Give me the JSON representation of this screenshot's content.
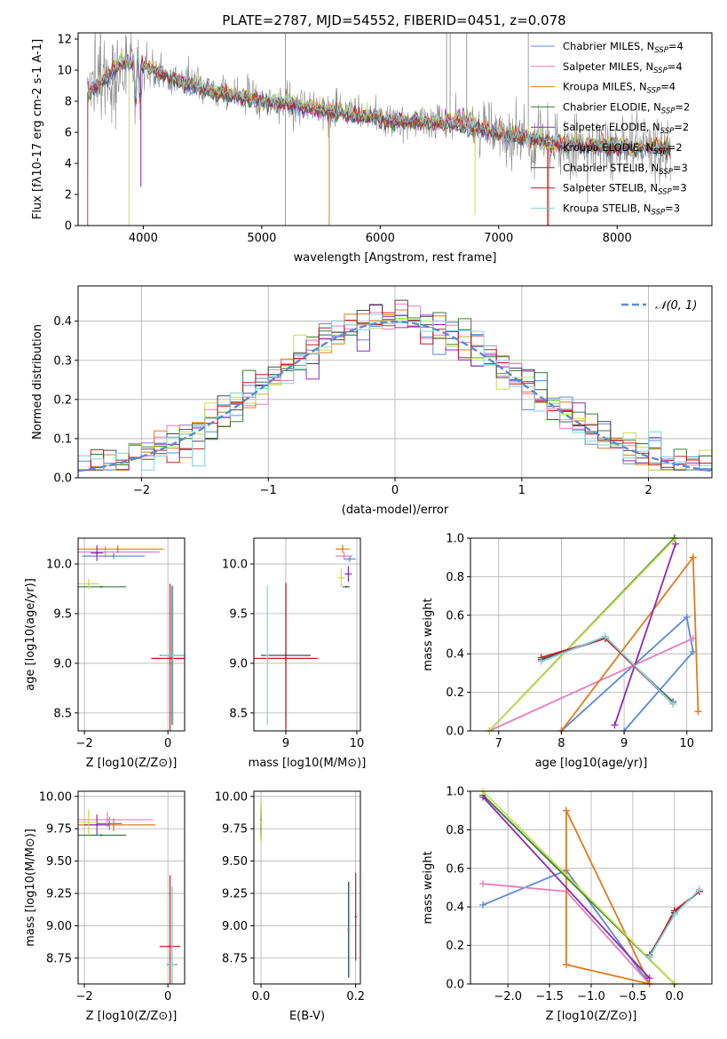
{
  "figure": {
    "title": "PLATE=2787, MJD=54552, FIBERID=0451, z=0.078"
  },
  "colors": {
    "chabrier_miles": "#5b8ad6",
    "salpeter_miles": "#e47ebd",
    "kroupa_miles": "#e07b1c",
    "chabrier_elodie": "#3a7a3a",
    "salpeter_elodie": "#9027b5",
    "kroupa_elodie": "#c4e04a",
    "chabrier_stelib": "#4a4a4a",
    "salpeter_stelib": "#c21f1f",
    "kroupa_stelib": "#7fd3dc",
    "data": "#888888",
    "normal": "#5b8ad6",
    "grid": "#b0b0b0"
  },
  "chart_data": [
    {
      "id": "spectrum",
      "type": "line",
      "xlabel": "wavelength [Angstrom, rest frame]",
      "ylabel": "Flux [f$_\\lambda$10$^{-17}$ erg cm$^{-2}$ s$^{-1}$ A$^{-1}$]",
      "xlim": [
        3450,
        8800
      ],
      "ylim": [
        0,
        12.4
      ],
      "xticks": [
        4000,
        5000,
        6000,
        7000,
        8000
      ],
      "yticks": [
        0,
        2,
        4,
        6,
        8,
        10,
        12
      ],
      "grid": false,
      "legend_position": "top-right",
      "legend": [
        {
          "key": "chabrier_miles",
          "main": "Chabrier MILES, N",
          "sub": "SSP",
          "tail": "=4"
        },
        {
          "key": "salpeter_miles",
          "main": "Salpeter MILES, N",
          "sub": "SSP",
          "tail": "=4"
        },
        {
          "key": "kroupa_miles",
          "main": "Kroupa MILES, N",
          "sub": "SSP",
          "tail": "=4"
        },
        {
          "key": "chabrier_elodie",
          "main": "Chabrier ELODIE, N",
          "sub": "SSP",
          "tail": "=2"
        },
        {
          "key": "salpeter_elodie",
          "main": "Salpeter ELODIE, N",
          "sub": "SSP",
          "tail": "=2"
        },
        {
          "key": "kroupa_elodie",
          "main": "Kroupa ELODIE, N",
          "sub": "SSP",
          "tail": "=2"
        },
        {
          "key": "chabrier_stelib",
          "main": "Chabrier STELIB, N",
          "sub": "SSP",
          "tail": "=3"
        },
        {
          "key": "salpeter_stelib",
          "main": "Salpeter STELIB, N",
          "sub": "SSP",
          "tail": "=3"
        },
        {
          "key": "kroupa_stelib",
          "main": "Kroupa STELIB, N",
          "sub": "SSP",
          "tail": "=3"
        }
      ],
      "continuum": [
        [
          3530,
          8.6
        ],
        [
          3700,
          9.6
        ],
        [
          3800,
          10.4
        ],
        [
          3950,
          10.5
        ],
        [
          4100,
          10.0
        ],
        [
          4300,
          9.3
        ],
        [
          4600,
          8.6
        ],
        [
          5000,
          8.0
        ],
        [
          5300,
          7.7
        ],
        [
          5700,
          7.2
        ],
        [
          6000,
          6.9
        ],
        [
          6300,
          6.7
        ],
        [
          6560,
          6.6
        ],
        [
          6800,
          6.3
        ],
        [
          7100,
          5.8
        ],
        [
          7400,
          5.4
        ],
        [
          7600,
          5.2
        ],
        [
          8000,
          5.1
        ],
        [
          8450,
          5.0
        ]
      ]
    },
    {
      "id": "residual_hist",
      "type": "area",
      "xlabel": "(data-model)/error",
      "ylabel": "Normed distribution",
      "xlim": [
        -2.5,
        2.5
      ],
      "ylim": [
        0,
        0.49
      ],
      "xticks": [
        -2,
        -1,
        0,
        1,
        2
      ],
      "yticks": [
        0.0,
        0.1,
        0.2,
        0.3,
        0.4
      ],
      "grid": true,
      "legend_position": "top-right",
      "legend_normal": "𝒩(0, 1)",
      "bin_width": 0.1
    },
    {
      "id": "age_vs_Z",
      "type": "scatter",
      "xlabel": "Z [log$_{10}$(Z/Z$_\\odot$)]",
      "ylabel": "age  [log$_{10}$(age/yr)]",
      "xlim": [
        -2.15,
        0.4
      ],
      "ylim": [
        8.32,
        10.26
      ],
      "xticks": [
        -2,
        0
      ],
      "yticks": [
        8.5,
        9.0,
        9.5,
        10.0
      ],
      "grid": true,
      "points": [
        {
          "key": "chabrier_miles",
          "x": -1.3,
          "y": 10.08,
          "xerr": 0.75,
          "yerr": 0.03
        },
        {
          "key": "salpeter_miles",
          "x": -1.5,
          "y": 10.12,
          "xerr": 1.3,
          "yerr": 0.06
        },
        {
          "key": "kroupa_miles",
          "x": -1.2,
          "y": 10.15,
          "xerr": 1.1,
          "yerr": 0.04
        },
        {
          "key": "chabrier_elodie",
          "x": -1.6,
          "y": 9.77,
          "xerr": 0.6,
          "yerr": 0.0
        },
        {
          "key": "salpeter_elodie",
          "x": -1.7,
          "y": 10.11,
          "xerr": 0.15,
          "yerr": 0.08
        },
        {
          "key": "kroupa_elodie",
          "x": -1.9,
          "y": 9.8,
          "xerr": 0.25,
          "yerr": 0.05
        },
        {
          "key": "chabrier_stelib",
          "x": 0.1,
          "y": 9.08,
          "xerr": 0.3,
          "yerr": 0.7
        },
        {
          "key": "salpeter_stelib",
          "x": 0.05,
          "y": 9.05,
          "xerr": 0.45,
          "yerr": 0.75
        },
        {
          "key": "kroupa_stelib",
          "x": 0.12,
          "y": 9.08,
          "xerr": 0.3,
          "yerr": 0.7
        }
      ]
    },
    {
      "id": "age_vs_mass",
      "type": "scatter",
      "xlabel": "mass [log$_{10}$(M/M$_\\odot$)]",
      "ylabel": "",
      "xlim": [
        8.55,
        10.05
      ],
      "ylim": [
        8.32,
        10.26
      ],
      "xticks": [
        8,
        9,
        10
      ],
      "yticks": [
        8.5,
        9.0,
        9.5,
        10.0
      ],
      "grid": true,
      "points": [
        {
          "key": "chabrier_miles",
          "x": 9.9,
          "y": 10.05,
          "xerr": 0.08,
          "yerr": 0.03
        },
        {
          "key": "salpeter_miles",
          "x": 9.82,
          "y": 10.08,
          "xerr": 0.12,
          "yerr": 0.04
        },
        {
          "key": "kroupa_miles",
          "x": 9.8,
          "y": 10.15,
          "xerr": 0.1,
          "yerr": 0.04
        },
        {
          "key": "chabrier_elodie",
          "x": 9.85,
          "y": 9.77,
          "xerr": 0.05,
          "yerr": 0.0
        },
        {
          "key": "salpeter_elodie",
          "x": 9.88,
          "y": 9.9,
          "xerr": 0.05,
          "yerr": 0.08
        },
        {
          "key": "kroupa_elodie",
          "x": 9.78,
          "y": 9.86,
          "xerr": 0.05,
          "yerr": 0.09
        },
        {
          "key": "chabrier_stelib",
          "x": 9.0,
          "y": 9.08,
          "xerr": 0.35,
          "yerr": 0.72
        },
        {
          "key": "salpeter_stelib",
          "x": 9.0,
          "y": 9.05,
          "xerr": 0.45,
          "yerr": 0.76
        },
        {
          "key": "kroupa_stelib",
          "x": 8.74,
          "y": 9.08,
          "xerr": 0.02,
          "yerr": 0.7
        }
      ]
    },
    {
      "id": "weight_vs_age",
      "type": "line",
      "xlabel": "age  [log$_{10}$(age/yr)]",
      "ylabel": "mass weight",
      "xlim": [
        6.55,
        10.4
      ],
      "ylim": [
        0,
        1.0
      ],
      "xticks": [
        7,
        8,
        9,
        10
      ],
      "yticks": [
        0.0,
        0.2,
        0.4,
        0.6,
        0.8,
        1.0
      ],
      "grid": true,
      "series": [
        {
          "key": "chabrier_miles",
          "x": [
            8.0,
            10.0,
            10.1,
            9.0
          ],
          "y": [
            0.0,
            0.59,
            0.41,
            0.0
          ]
        },
        {
          "key": "salpeter_miles",
          "x": [
            6.85,
            10.1
          ],
          "y": [
            0.0,
            0.48
          ]
        },
        {
          "key": "kroupa_miles",
          "x": [
            8.0,
            10.1,
            10.18,
            10.1
          ],
          "y": [
            0.0,
            0.9,
            0.1,
            0.9
          ]
        },
        {
          "key": "chabrier_elodie",
          "x": [
            6.85,
            9.8
          ],
          "y": [
            0.0,
            1.0
          ]
        },
        {
          "key": "salpeter_elodie",
          "x": [
            8.85,
            9.82
          ],
          "y": [
            0.03,
            0.97
          ]
        },
        {
          "key": "kroupa_elodie",
          "x": [
            6.85,
            9.82
          ],
          "y": [
            0.0,
            1.0
          ]
        },
        {
          "key": "chabrier_stelib",
          "x": [
            7.68,
            8.7,
            9.78
          ],
          "y": [
            0.37,
            0.48,
            0.15
          ]
        },
        {
          "key": "salpeter_stelib",
          "x": [
            7.68,
            8.7,
            9.78
          ],
          "y": [
            0.38,
            0.48,
            0.14
          ]
        },
        {
          "key": "kroupa_stelib",
          "x": [
            7.68,
            8.7,
            9.78
          ],
          "y": [
            0.36,
            0.49,
            0.14
          ]
        }
      ]
    },
    {
      "id": "mass_vs_Z",
      "type": "scatter",
      "xlabel": "Z [log$_{10}$(Z/Z$_\\odot$)]",
      "ylabel": "mass [log$_{10}$(M/M$_\\odot$)]",
      "xlim": [
        -2.15,
        0.4
      ],
      "ylim": [
        8.55,
        10.04
      ],
      "xticks": [
        -2,
        0
      ],
      "yticks": [
        8.75,
        9.0,
        9.25,
        9.5,
        9.75,
        10.0
      ],
      "grid": true,
      "points": [
        {
          "key": "chabrier_miles",
          "x": -1.4,
          "y": 9.79,
          "xerr": 0.3,
          "yerr": 0.05
        },
        {
          "key": "salpeter_miles",
          "x": -1.45,
          "y": 9.82,
          "xerr": 1.1,
          "yerr": 0.06
        },
        {
          "key": "kroupa_miles",
          "x": -1.3,
          "y": 9.78,
          "xerr": 1.0,
          "yerr": 0.05
        },
        {
          "key": "chabrier_elodie",
          "x": -1.6,
          "y": 9.7,
          "xerr": 0.6,
          "yerr": 0.0
        },
        {
          "key": "salpeter_elodie",
          "x": -1.7,
          "y": 9.78,
          "xerr": 0.3,
          "yerr": 0.08
        },
        {
          "key": "kroupa_elodie",
          "x": -1.9,
          "y": 9.8,
          "xerr": 0.25,
          "yerr": 0.1
        },
        {
          "key": "chabrier_stelib",
          "x": 0.1,
          "y": 8.7,
          "xerr": 0.12,
          "yerr": 0.6
        },
        {
          "key": "salpeter_stelib",
          "x": 0.05,
          "y": 8.84,
          "xerr": 0.25,
          "yerr": 0.55
        },
        {
          "key": "kroupa_stelib",
          "x": 0.1,
          "y": 8.7,
          "xerr": 0.1,
          "yerr": 0.6
        }
      ]
    },
    {
      "id": "mass_vs_ebv",
      "type": "scatter",
      "xlabel": "E(B-V)",
      "ylabel": "",
      "xlim": [
        -0.015,
        0.21
      ],
      "ylim": [
        8.55,
        10.04
      ],
      "xticks": [
        0.0,
        0.2
      ],
      "yticks": [
        8.75,
        9.0,
        9.25,
        9.5,
        9.75,
        10.0
      ],
      "grid": true,
      "points": [
        {
          "key": "chabrier_miles",
          "x": 0.0,
          "y": 9.8,
          "xerr": 0.0,
          "yerr": 0.1
        },
        {
          "key": "salpeter_miles",
          "x": 0.0,
          "y": 9.8,
          "xerr": 0.0,
          "yerr": 0.12
        },
        {
          "key": "kroupa_miles",
          "x": 0.0,
          "y": 9.8,
          "xerr": 0.0,
          "yerr": 0.1
        },
        {
          "key": "chabrier_elodie",
          "x": 0.0,
          "y": 9.75,
          "xerr": 0.0,
          "yerr": 0.1
        },
        {
          "key": "salpeter_elodie",
          "x": 0.0,
          "y": 9.82,
          "xerr": 0.0,
          "yerr": 0.14
        },
        {
          "key": "kroupa_elodie",
          "x": 0.0,
          "y": 9.8,
          "xerr": 0.0,
          "yerr": 0.16
        },
        {
          "key": "chabrier_stelib",
          "x": 0.185,
          "y": 8.97,
          "xerr": 0.0,
          "yerr": 0.37
        },
        {
          "key": "salpeter_stelib",
          "x": 0.2,
          "y": 9.07,
          "xerr": 0.0,
          "yerr": 0.34
        },
        {
          "key": "kroupa_stelib",
          "x": 0.187,
          "y": 8.97,
          "xerr": 0.0,
          "yerr": 0.37
        }
      ]
    },
    {
      "id": "weight_vs_Z",
      "type": "line",
      "xlabel": "Z [log$_{10}$(Z/Z$_\\odot$)]",
      "ylabel": "mass weight",
      "xlim": [
        -2.45,
        0.45
      ],
      "ylim": [
        0,
        1.0
      ],
      "xticks": [
        -2.0,
        -1.5,
        -1.0,
        -0.5,
        0.0
      ],
      "yticks": [
        0.0,
        0.2,
        0.4,
        0.6,
        0.8,
        1.0
      ],
      "grid": true,
      "series": [
        {
          "key": "chabrier_miles",
          "x": [
            -2.3,
            -1.3,
            -0.3
          ],
          "y": [
            0.41,
            0.59,
            0.0
          ]
        },
        {
          "key": "salpeter_miles",
          "x": [
            -2.3,
            -1.3,
            -0.3
          ],
          "y": [
            0.52,
            0.48,
            0.0
          ]
        },
        {
          "key": "kroupa_miles",
          "x": [
            -1.3,
            -1.3,
            -0.3,
            -1.3
          ],
          "y": [
            0.9,
            0.1,
            0.0,
            0.9
          ]
        },
        {
          "key": "chabrier_elodie",
          "x": [
            -2.3,
            0.0
          ],
          "y": [
            0.98,
            0.0
          ]
        },
        {
          "key": "salpeter_elodie",
          "x": [
            -2.3,
            -0.3
          ],
          "y": [
            0.97,
            0.03
          ]
        },
        {
          "key": "kroupa_elodie",
          "x": [
            -2.3,
            0.0
          ],
          "y": [
            1.0,
            0.0
          ]
        },
        {
          "key": "chabrier_stelib",
          "x": [
            -0.3,
            0.0,
            0.3
          ],
          "y": [
            0.15,
            0.37,
            0.48
          ]
        },
        {
          "key": "salpeter_stelib",
          "x": [
            -0.3,
            0.0,
            0.3
          ],
          "y": [
            0.14,
            0.38,
            0.48
          ]
        },
        {
          "key": "kroupa_stelib",
          "x": [
            -0.3,
            0.0,
            0.3
          ],
          "y": [
            0.14,
            0.36,
            0.49
          ]
        }
      ]
    }
  ]
}
